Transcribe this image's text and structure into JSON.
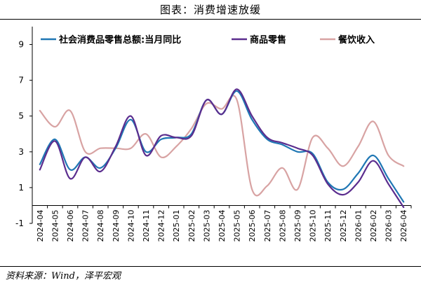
{
  "figure": {
    "title": "图表：消费增速放缓",
    "source": "资料来源：Wind，泽平宏观"
  },
  "chart_data": {
    "type": "line",
    "title": "",
    "xlabel": "",
    "ylabel": "",
    "categories": [
      "2024-04",
      "2024-05",
      "2024-06",
      "2024-07",
      "2024-08",
      "2024-09",
      "2024-10",
      "2024-11",
      "2024-12",
      "2025-01",
      "2025-02",
      "2025-03",
      "2025-04",
      "2025-05",
      "2025-06",
      "2025-07",
      "2025-08",
      "2025-09",
      "2025-10",
      "2025-11",
      "2025-12",
      "2026-01",
      "2026-02",
      "2026-03",
      "2026-04"
    ],
    "ylim": [
      -1,
      10
    ],
    "yticks": [
      -1,
      1,
      3,
      5,
      7,
      9
    ],
    "grid": false,
    "legend": "top",
    "series": [
      {
        "name": "社会消费品零售总额:当月同比",
        "color": "#1f77b4",
        "values": [
          2.3,
          3.7,
          2.0,
          2.7,
          2.1,
          3.2,
          4.8,
          3.0,
          3.7,
          3.8,
          4.0,
          5.9,
          5.1,
          6.4,
          4.8,
          3.7,
          3.4,
          3.0,
          2.9,
          1.3,
          0.9,
          1.8,
          2.8,
          1.5,
          0.2
        ]
      },
      {
        "name": "商品零售",
        "color": "#5b2d8e",
        "values": [
          2.0,
          3.6,
          1.5,
          2.7,
          1.9,
          3.3,
          5.0,
          2.8,
          3.9,
          3.8,
          3.9,
          5.9,
          5.1,
          6.5,
          5.0,
          3.8,
          3.5,
          3.2,
          2.8,
          1.2,
          0.6,
          1.3,
          2.5,
          1.2,
          -0.1
        ]
      },
      {
        "name": "餐饮收入",
        "color": "#d8a3a3",
        "values": [
          5.3,
          4.4,
          5.3,
          3.0,
          3.2,
          3.2,
          3.2,
          4.0,
          2.7,
          3.3,
          4.3,
          5.7,
          5.4,
          5.9,
          0.9,
          1.1,
          2.1,
          0.9,
          3.8,
          3.2,
          2.2,
          3.3,
          4.7,
          2.8,
          2.2
        ]
      }
    ]
  }
}
